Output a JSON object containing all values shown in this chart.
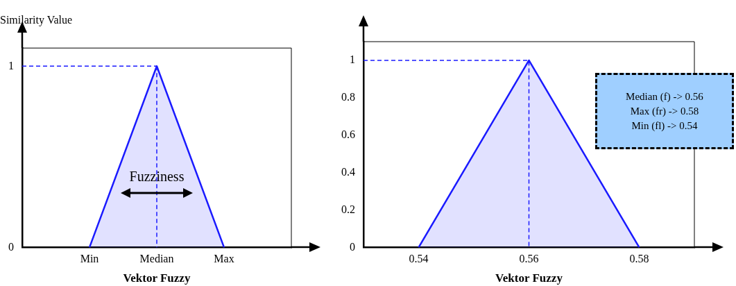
{
  "chart_data": [
    {
      "type": "area",
      "ylabel": "Similarity Value",
      "xlabel": "Vektor Fuzzy",
      "categories": [
        null,
        "Min",
        "Median",
        "Max",
        null
      ],
      "ylim": [
        0,
        1.1
      ],
      "yticks": [
        0,
        1
      ],
      "series": [
        {
          "color": "#1a1aff",
          "values": [
            null,
            0,
            1,
            0,
            null
          ]
        },
        {
          "type": "line",
          "line_style": "dashed",
          "color": "#1a1aff",
          "values": [
            1,
            1,
            1,
            null,
            null
          ]
        },
        {
          "type": "line",
          "line_style": "dashed",
          "color": "#1a1aff",
          "x": [
            "Median",
            "Median"
          ],
          "values": [
            1,
            0
          ]
        }
      ],
      "annotations": [
        {
          "text": "Fuzziness",
          "x": "Median",
          "y": 0.3
        }
      ]
    },
    {
      "type": "area",
      "xlabel": "Vektor Fuzzy",
      "xlim": [
        0.53,
        0.59
      ],
      "xticks": [
        0.54,
        0.56,
        0.58
      ],
      "ylim": [
        0,
        1.1
      ],
      "yticks": [
        0,
        0.2,
        0.4,
        0.6,
        0.8,
        1
      ],
      "series": [
        {
          "color": "#1a1aff",
          "x": [
            0.54,
            0.56,
            0.58
          ],
          "values": [
            0,
            1,
            0
          ]
        },
        {
          "type": "line",
          "line_style": "dashed",
          "color": "#1a1aff",
          "x": [
            0.53,
            0.56,
            0.56
          ],
          "values": [
            1,
            1,
            0
          ]
        }
      ],
      "annotations": [
        "Median (f) -> 0.56",
        "Max (fr) -> 0.58",
        "Min (fl) -> 0.54"
      ]
    }
  ]
}
